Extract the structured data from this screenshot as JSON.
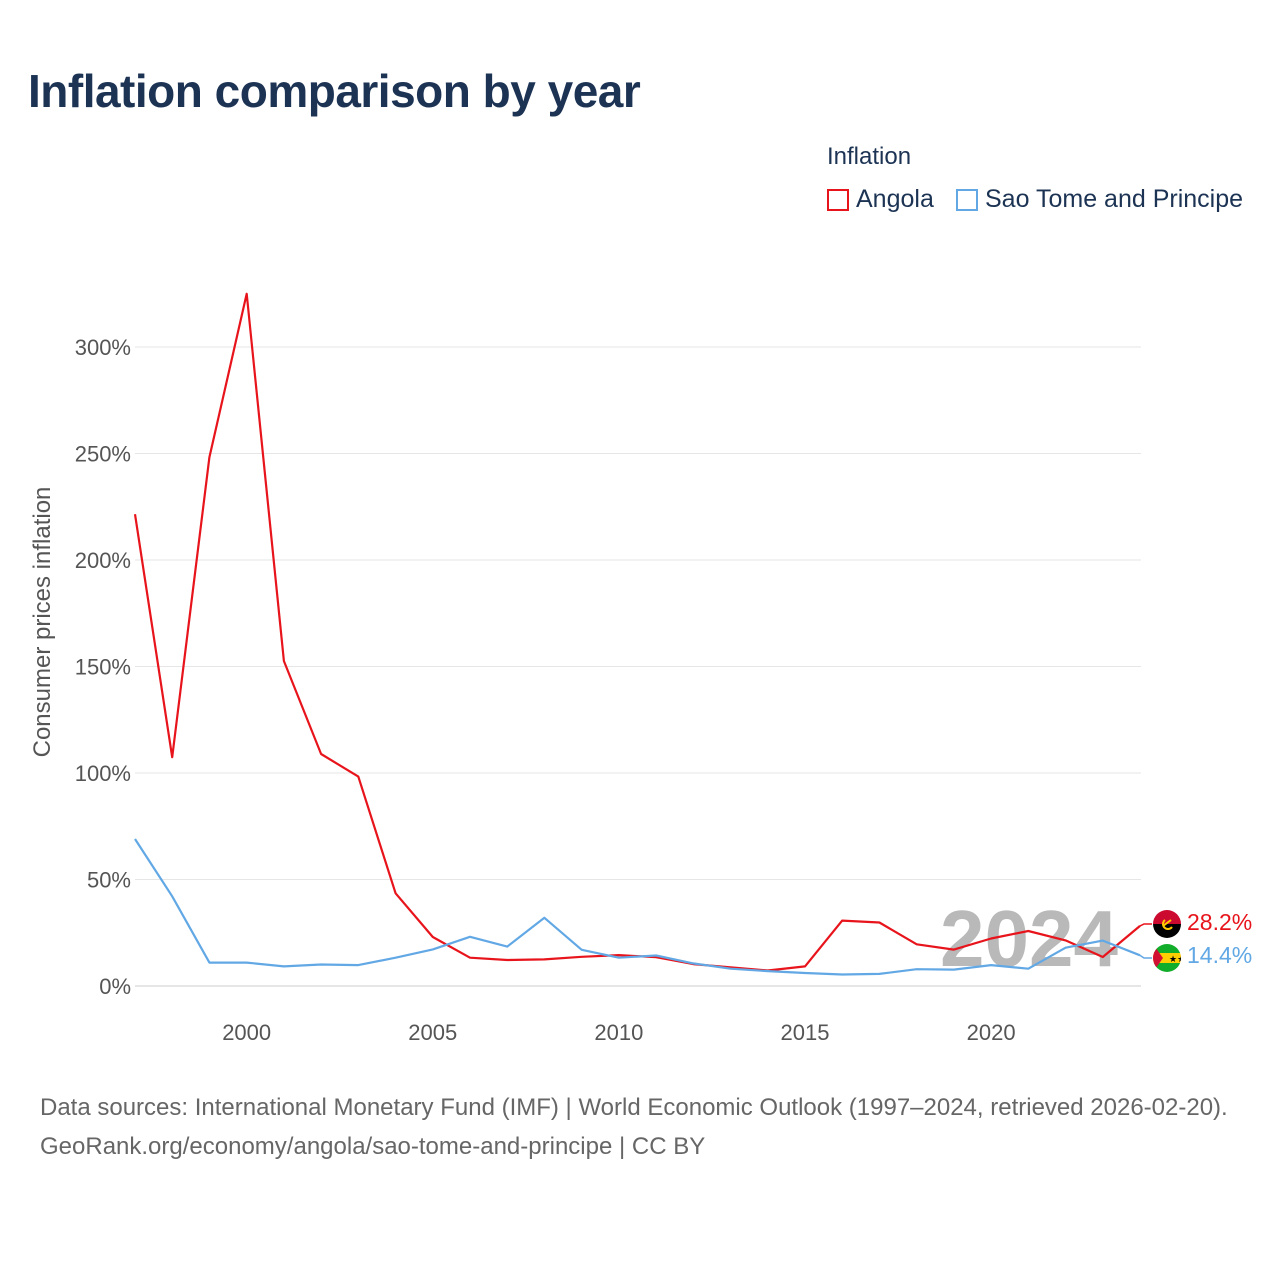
{
  "title": "Inflation comparison by year",
  "legend": {
    "title": "Inflation",
    "items": [
      {
        "label": "Angola",
        "color": "#e8141c"
      },
      {
        "label": "Sao Tome and Principe",
        "color": "#62a8e5"
      }
    ]
  },
  "source": {
    "line1": "Data sources: International Monetary Fund (IMF) | World Economic Outlook (1997–2024, retrieved 2026-02-20).",
    "line2": "GeoRank.org/economy/angola/sao-tome-and-principe | CC BY"
  },
  "chart_data": {
    "type": "line",
    "title": "Inflation comparison by year",
    "xlabel": "",
    "ylabel": "Consumer prices inflation",
    "xlim": [
      1997,
      2024
    ],
    "ylim": [
      0,
      300
    ],
    "x_ticks": [
      2000,
      2005,
      2010,
      2015,
      2020
    ],
    "y_ticks": [
      0,
      50,
      100,
      150,
      200,
      250,
      300
    ],
    "y_tick_labels": [
      "0%",
      "50%",
      "100%",
      "150%",
      "200%",
      "250%",
      "300%"
    ],
    "grid": true,
    "watermark_year": "2024",
    "x": [
      1997,
      1998,
      1999,
      2000,
      2001,
      2002,
      2003,
      2004,
      2005,
      2006,
      2007,
      2008,
      2009,
      2010,
      2011,
      2012,
      2013,
      2014,
      2015,
      2016,
      2017,
      2018,
      2019,
      2020,
      2021,
      2022,
      2023,
      2024
    ],
    "series": [
      {
        "name": "Angola",
        "color": "#e8141c",
        "end_label": "28.2%",
        "flag": "angola-flag",
        "values": [
          221.5,
          107.4,
          248.2,
          325.0,
          152.6,
          108.9,
          98.3,
          43.5,
          23.0,
          13.3,
          12.2,
          12.5,
          13.7,
          14.5,
          13.5,
          10.3,
          8.8,
          7.3,
          9.2,
          30.7,
          29.8,
          19.6,
          17.1,
          22.3,
          25.8,
          21.4,
          13.6,
          28.2
        ]
      },
      {
        "name": "Sao Tome and Principe",
        "color": "#62a8e5",
        "end_label": "14.4%",
        "flag": "sao-tome-flag",
        "values": [
          69.0,
          42.1,
          11.0,
          11.0,
          9.2,
          10.1,
          9.8,
          13.3,
          17.2,
          23.1,
          18.5,
          32.0,
          17.0,
          13.3,
          14.3,
          10.6,
          8.1,
          7.0,
          6.1,
          5.4,
          5.7,
          7.9,
          7.7,
          9.8,
          8.1,
          18.0,
          21.3,
          14.4
        ]
      }
    ]
  }
}
